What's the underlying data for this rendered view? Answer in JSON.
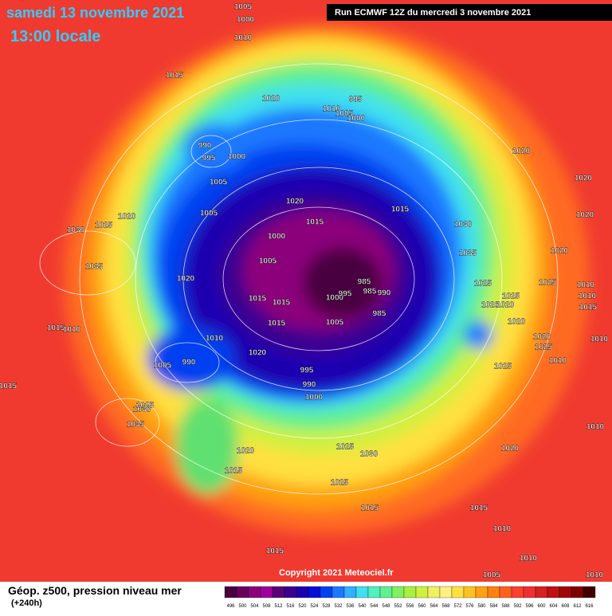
{
  "header": {
    "date": "samedi 13 novembre 2021",
    "time": "13:00 locale",
    "run": "Run ECMWF 12Z du mercredi 3 novembre 2021"
  },
  "footer": {
    "copyright": "Copyright 2021 Meteociel.fr",
    "title": "Géop. z500, pression niveau mer",
    "lead": "(+240h)"
  },
  "isobar_labels": [
    1005,
    1000,
    1010,
    1015,
    1020,
    995,
    1010,
    1005,
    1000,
    990,
    995,
    1000,
    1020,
    1005,
    1020,
    1020,
    1015,
    1005,
    1015,
    1020,
    1025,
    1030,
    1030,
    1020,
    1000,
    1035,
    1020,
    1005,
    1035,
    1025,
    1025,
    985,
    1010,
    1020,
    1015,
    1015,
    1000,
    995,
    985,
    990,
    1025,
    1010,
    1020,
    1020,
    1015,
    1015,
    1005,
    985,
    1015,
    1010,
    1020,
    1010,
    1020,
    1010,
    1025,
    1020,
    1005,
    990,
    1010,
    1025,
    995,
    990,
    1015,
    1000,
    1025,
    1030,
    1035,
    1010,
    1020,
    1025,
    1030,
    1020,
    1015,
    1025,
    1015,
    1015,
    1010,
    1010,
    1015,
    1005,
    1010
  ],
  "legend": {
    "values": [
      496,
      500,
      504,
      508,
      512,
      516,
      520,
      524,
      528,
      532,
      536,
      540,
      544,
      548,
      552,
      556,
      560,
      564,
      568,
      572,
      576,
      580,
      584,
      588,
      592,
      596,
      600,
      604,
      608,
      612,
      616
    ],
    "colors": [
      "#4a0040",
      "#6a005e",
      "#8c007c",
      "#a0009a",
      "#5a0078",
      "#3a0090",
      "#1c00b0",
      "#0010d8",
      "#0040f0",
      "#1c78ff",
      "#30b0ff",
      "#40e0f0",
      "#50f0c0",
      "#60f090",
      "#80f060",
      "#a8f040",
      "#d0f040",
      "#f0f060",
      "#fff080",
      "#ffe040",
      "#ffc020",
      "#ffa010",
      "#ff8010",
      "#ff6020",
      "#ff4030",
      "#f03030",
      "#d82020",
      "#c01010",
      "#a00808",
      "#800000",
      "#400000"
    ]
  }
}
